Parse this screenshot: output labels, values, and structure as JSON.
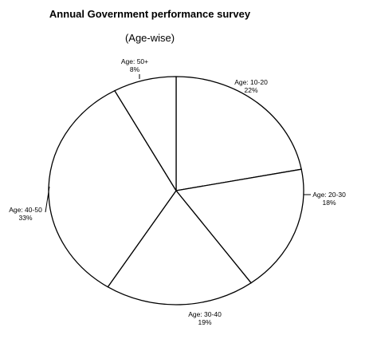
{
  "chart_data": {
    "type": "pie",
    "title": "Annual Government performance survey",
    "subtitle": "(Age-wise)",
    "slices": [
      {
        "label": "Age: 10-20",
        "value": 22,
        "value_label": "22%"
      },
      {
        "label": "Age: 20-30",
        "value": 18,
        "value_label": "18%"
      },
      {
        "label": "Age: 30-40",
        "value": 19,
        "value_label": "19%"
      },
      {
        "label": "Age: 40-50",
        "value": 33,
        "value_label": "33%"
      },
      {
        "label": "Age: 50+",
        "value": 8,
        "value_label": "8%"
      }
    ],
    "fill_color": "#ffffff",
    "stroke_color": "#000000",
    "legend": "none"
  }
}
